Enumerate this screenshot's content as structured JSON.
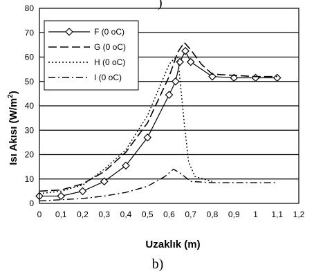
{
  "chart_data": {
    "type": "line",
    "xlabel": "Uzaklık (m)",
    "ylabel": "Isı Akısı (W/m 2)",
    "ylabel_main": "Isı Akısı (W/m",
    "ylabel_sup": "2",
    "ylabel_close": ")",
    "caption": "b)",
    "top_fragment": ")",
    "xlim": [
      0,
      1.2
    ],
    "ylim": [
      0,
      80
    ],
    "x_ticks": [
      "0",
      "0,1",
      "0,2",
      "0,3",
      "0,4",
      "0,5",
      "0,6",
      "0,7",
      "0,8",
      "0,9",
      "1",
      "1,1",
      "1,2"
    ],
    "x_tick_values": [
      0,
      0.1,
      0.2,
      0.3,
      0.4,
      0.5,
      0.6,
      0.7,
      0.8,
      0.9,
      1.0,
      1.1,
      1.2
    ],
    "y_ticks": [
      "0",
      "10",
      "20",
      "30",
      "40",
      "50",
      "60",
      "70",
      "80"
    ],
    "y_tick_values": [
      0,
      10,
      20,
      30,
      40,
      50,
      60,
      70,
      80
    ],
    "grid": "horizontal",
    "legend_position": "top-left",
    "series": [
      {
        "name": "F (0 oC)",
        "style": "solid-diamond",
        "x": [
          0,
          0.1,
          0.2,
          0.3,
          0.4,
          0.5,
          0.6,
          0.63,
          0.65,
          0.675,
          0.7,
          0.8,
          0.9,
          1.0,
          1.1
        ],
        "y": [
          3,
          3,
          5,
          9,
          15.5,
          27,
          44.5,
          50,
          58,
          62.5,
          58,
          52,
          51.5,
          51.5,
          51.5
        ]
      },
      {
        "name": "G (0 oC)",
        "style": "long-dash",
        "x": [
          0,
          0.1,
          0.2,
          0.3,
          0.4,
          0.5,
          0.6,
          0.64,
          0.67,
          0.7,
          0.75,
          0.8,
          0.9,
          1.0,
          1.1
        ],
        "y": [
          5,
          5.5,
          8,
          13,
          21,
          33,
          52,
          62,
          66,
          63,
          57,
          53,
          52.5,
          52,
          52
        ]
      },
      {
        "name": "H (0 oC)",
        "style": "dotted",
        "x": [
          0,
          0.1,
          0.2,
          0.3,
          0.4,
          0.5,
          0.6,
          0.62,
          0.64,
          0.67,
          0.69,
          0.72,
          0.8
        ],
        "y": [
          4,
          5,
          7.5,
          14,
          22,
          36,
          57,
          59,
          60,
          33,
          17,
          11,
          9
        ]
      },
      {
        "name": "I (0 oC)",
        "style": "dash-dot",
        "x": [
          0,
          0.1,
          0.2,
          0.3,
          0.4,
          0.5,
          0.58,
          0.62,
          0.65,
          0.7,
          0.8,
          0.9,
          1.0,
          1.1
        ],
        "y": [
          1,
          1.5,
          2,
          3,
          4.5,
          7,
          11,
          14,
          12.5,
          9,
          8.5,
          8.5,
          8.5,
          8.5
        ]
      }
    ]
  }
}
